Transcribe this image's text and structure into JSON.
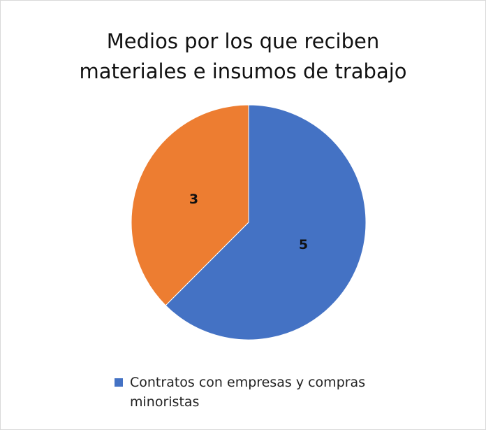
{
  "chart_data": {
    "type": "pie",
    "title": "Medios por los que reciben materiales e insumos de trabajo",
    "categories": [
      "Contratos con empresas y compras minoristas",
      null
    ],
    "values": [
      5,
      3
    ],
    "colors": [
      "#4472c4",
      "#ed7d31"
    ]
  }
}
